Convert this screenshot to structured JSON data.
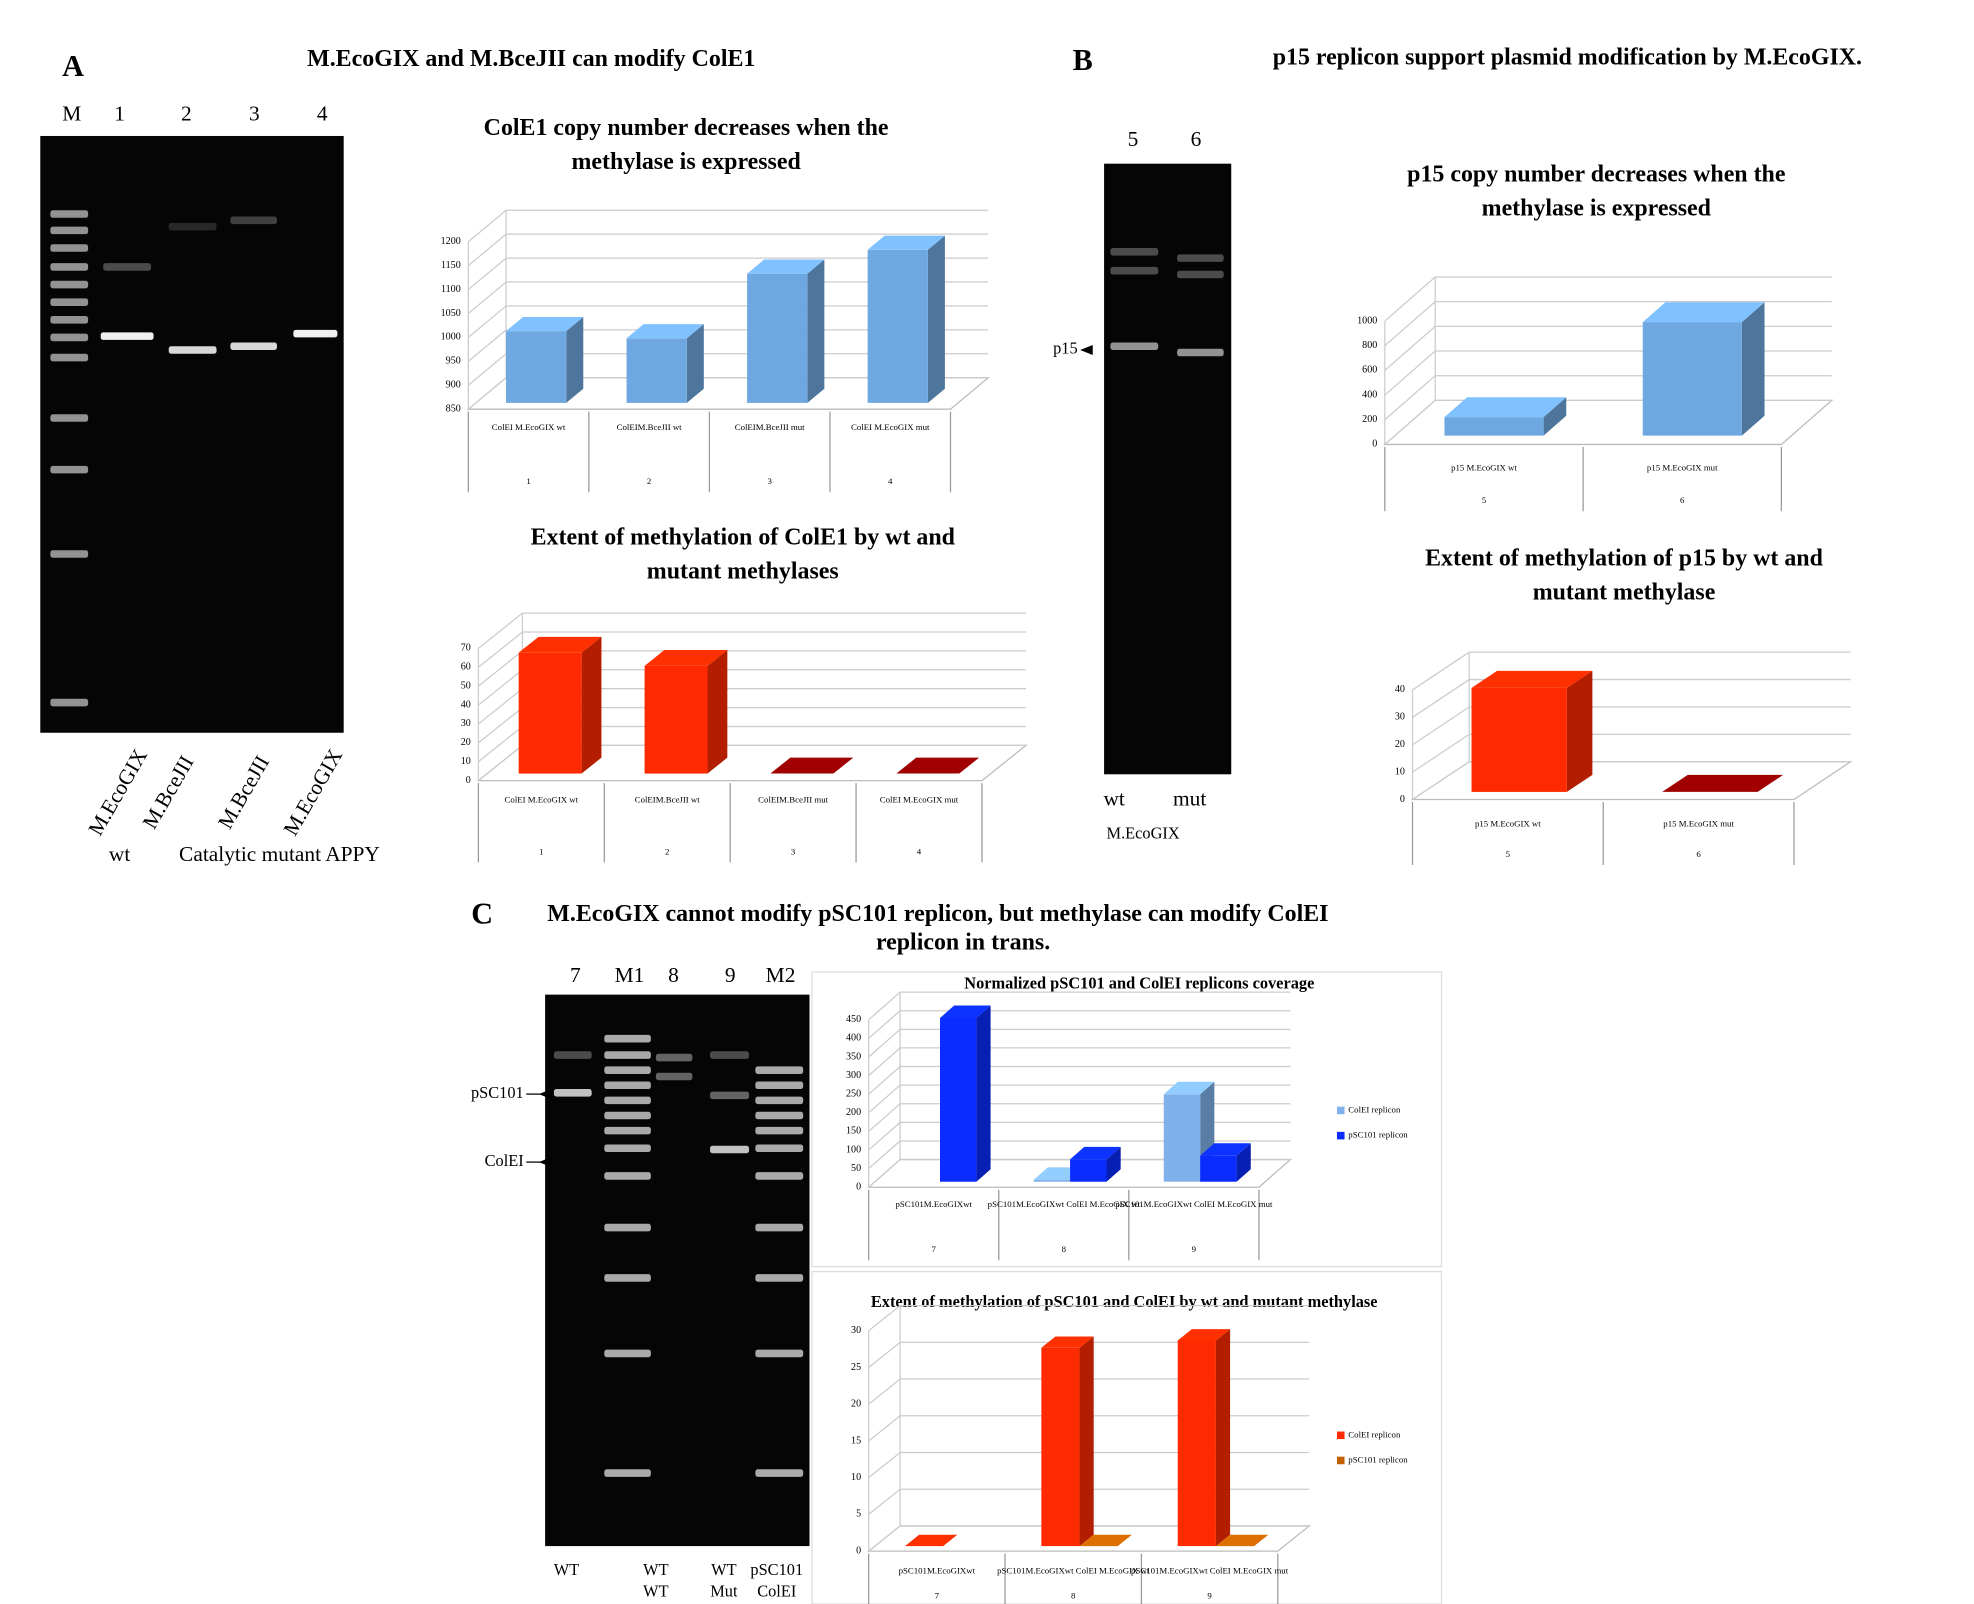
{
  "panels": [
    {
      "letter": "A",
      "title": [
        "M.EcoGIX and M.BceJII can modify ColE1"
      ]
    },
    {
      "letter": "B",
      "title": [
        "p15 replicon support plasmid modification by M.EcoGIX."
      ]
    },
    {
      "letter": "C",
      "title": [
        "M.EcoGIX cannot modify pSC101 replicon, but methylase can modify  ColEI",
        "replicon in trans."
      ]
    }
  ],
  "gels": [
    {
      "lanes": [
        "M",
        "1",
        "2",
        "3",
        "4"
      ],
      "rotated_labels": [
        "M.EcoGIX",
        "M.BceJII",
        "M.BceJII",
        "M.EcoGIX"
      ],
      "bottom_labels": [
        "wt",
        "Catalytic mutant APPY"
      ]
    },
    {
      "lanes": [
        "5",
        "6"
      ],
      "markers": [
        "p15"
      ],
      "bottom_labels": [
        "wt",
        "mut"
      ],
      "caption": "M.EcoGIX"
    },
    {
      "lanes": [
        "7",
        "M1",
        "8",
        "9",
        "M2"
      ],
      "markers": [
        "pSC101",
        "ColEI"
      ],
      "bottom_labels": [
        [
          "WT"
        ],
        [
          "WT",
          "WT"
        ],
        [
          "WT",
          "Mut"
        ],
        [
          "pSC101",
          "ColEI"
        ]
      ]
    }
  ],
  "chart_data": [
    {
      "type": "bar",
      "title": [
        "ColE1 copy number decreases when the",
        "methylase is expressed"
      ],
      "categories": [
        "ColEI M.EcoGIX wt",
        "ColEIM.BceJII wt",
        "ColEIM.BceJII mut",
        "ColEI M.EcoGIX mut"
      ],
      "category_numbers": [
        "1",
        "2",
        "3",
        "4"
      ],
      "values": [
        1000,
        985,
        1120,
        1170
      ],
      "colors": [
        "#6fa8e0",
        "#6fa8e0",
        "#6fa8e0",
        "#6fa8e0"
      ],
      "ylim": [
        850,
        1200
      ],
      "yticks": [
        850,
        900,
        950,
        1000,
        1050,
        1100,
        1150,
        1200
      ],
      "grid": true
    },
    {
      "type": "bar",
      "title": [
        "Extent of methylation of ColE1 by wt and",
        "mutant methylases"
      ],
      "categories": [
        "ColEI M.EcoGIX wt",
        "ColEIM.BceJII wt",
        "ColEIM.BceJII mut",
        "ColEI M.EcoGIX mut"
      ],
      "category_numbers": [
        "1",
        "2",
        "3",
        "4"
      ],
      "values": [
        64,
        57,
        0,
        0
      ],
      "colors": [
        "#ff2a00",
        "#ff2a00",
        "#8b0000",
        "#8b0000"
      ],
      "ylim": [
        0,
        70
      ],
      "yticks": [
        0,
        10,
        20,
        30,
        40,
        50,
        60,
        70
      ],
      "grid": true
    },
    {
      "type": "bar",
      "title": [
        "p15 copy number decreases when the",
        "methylase is expressed"
      ],
      "categories": [
        "p15 M.EcoGIX wt",
        "p15 M.EcoGIX mut"
      ],
      "category_numbers": [
        "5",
        "6"
      ],
      "values": [
        150,
        920
      ],
      "colors": [
        "#6fa8e0",
        "#6fa8e0"
      ],
      "ylim": [
        0,
        1000
      ],
      "yticks": [
        0,
        200,
        400,
        600,
        800,
        1000
      ],
      "grid": true
    },
    {
      "type": "bar",
      "title": [
        "Extent of methylation of p15 by wt and",
        "mutant methylase"
      ],
      "categories": [
        "p15 M.EcoGIX wt",
        "p15 M.EcoGIX mut"
      ],
      "category_numbers": [
        "5",
        "6"
      ],
      "values": [
        38,
        0
      ],
      "colors": [
        "#ff2a00",
        "#8b0000"
      ],
      "ylim": [
        0,
        40
      ],
      "yticks": [
        0,
        10,
        20,
        30,
        40
      ],
      "grid": true
    },
    {
      "type": "grouped-bar",
      "title": [
        "Normalized pSC101 and ColEI replicons coverage"
      ],
      "categories": [
        "pSC101M.EcoGIXwt",
        "pSC101M.EcoGIXwt ColEI M.EcoGIX wt",
        "pSC101M.EcoGIXwt ColEI M.EcoGIX mut"
      ],
      "category_numbers": [
        "7",
        "8",
        "9"
      ],
      "series": [
        {
          "name": "ColEI replicon",
          "color": "#7fb2ea",
          "values": [
            null,
            5,
            235
          ]
        },
        {
          "name": "pSC101 replicon",
          "color": "#0a2cff",
          "values": [
            440,
            60,
            70
          ]
        }
      ],
      "ylim": [
        0,
        450
      ],
      "yticks": [
        0,
        50,
        100,
        150,
        200,
        250,
        300,
        350,
        400,
        450
      ],
      "grid": true,
      "legend": "right"
    },
    {
      "type": "grouped-bar",
      "title": [
        "Extent of methylation of pSC101 and ColEI by wt and mutant methylase"
      ],
      "categories": [
        "pSC101M.EcoGIXwt",
        "pSC101M.EcoGIXwt ColEI M.EcoGIX wt",
        "pSC101M.EcoGIXwt ColEI M.EcoGIX mut"
      ],
      "category_numbers": [
        "7",
        "8",
        "9"
      ],
      "series": [
        {
          "name": "ColEI replicon",
          "color": "#ff2a00",
          "values": [
            0,
            27,
            28
          ]
        },
        {
          "name": "pSC101 replicon",
          "color": "#c06000",
          "values": [
            null,
            0,
            0
          ]
        }
      ],
      "ylim": [
        0,
        30
      ],
      "yticks": [
        0,
        5,
        10,
        15,
        20,
        25,
        30
      ],
      "grid": true,
      "legend": "right"
    }
  ]
}
